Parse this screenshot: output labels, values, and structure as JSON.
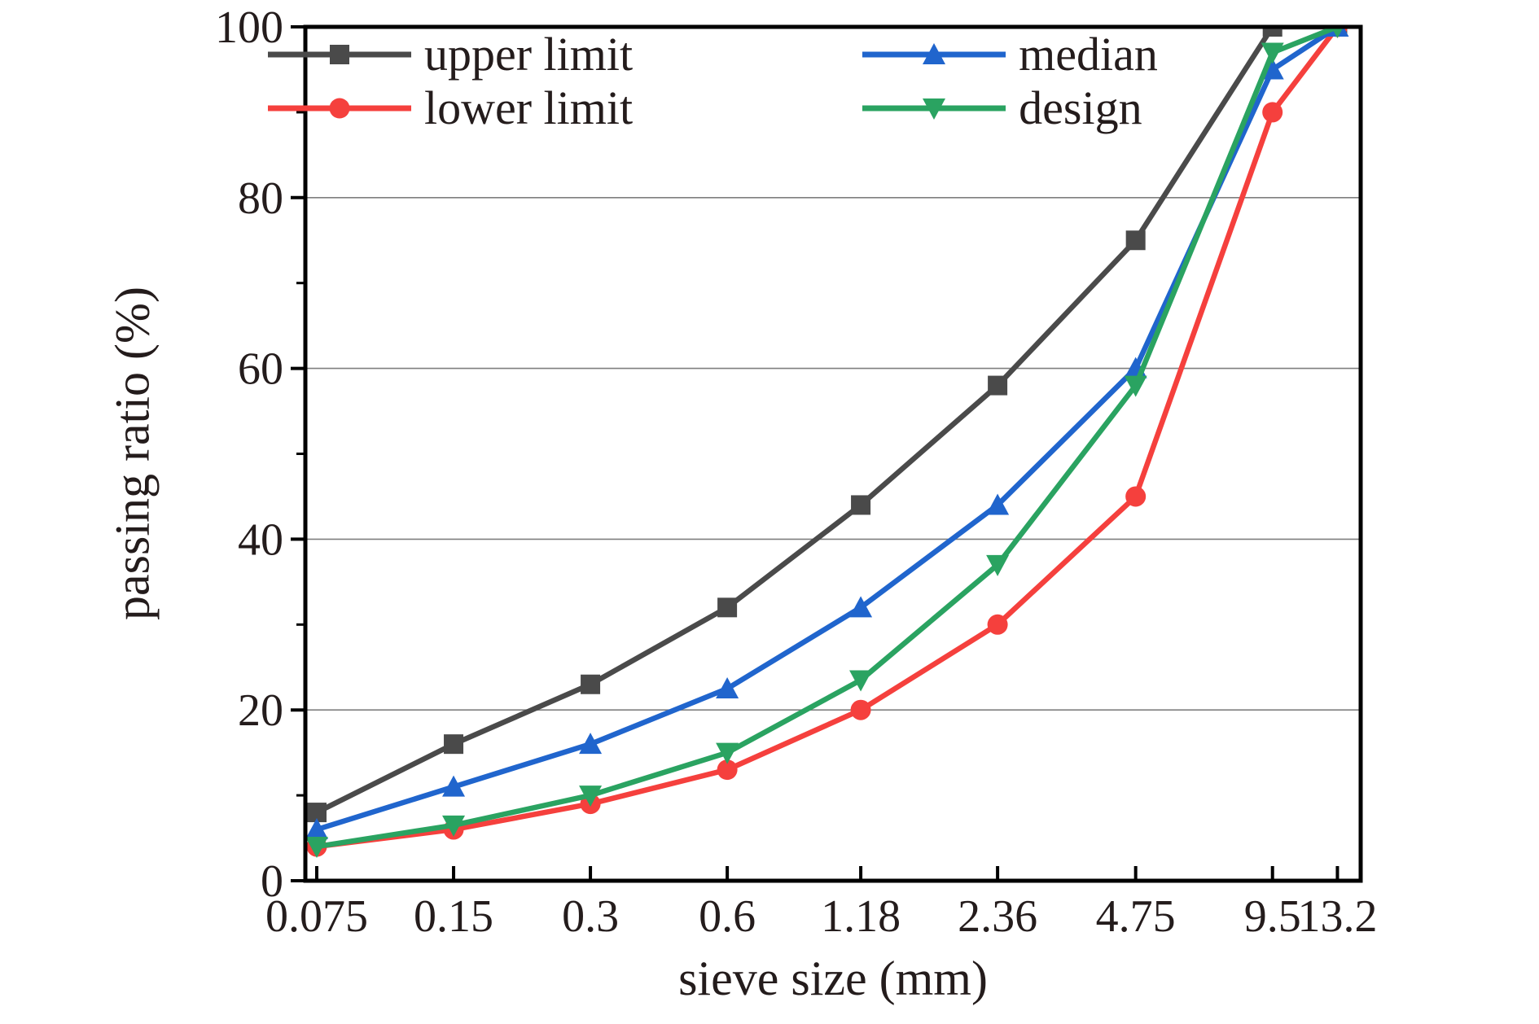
{
  "figure": {
    "background": "#ffffff"
  },
  "chart_data": {
    "type": "line",
    "title": "",
    "xlabel": "sieve size (mm)",
    "ylabel": "passing ratio (%)",
    "x_scale": "log",
    "categories": [
      0.075,
      0.15,
      0.3,
      0.6,
      1.18,
      2.36,
      4.75,
      9.5,
      13.2
    ],
    "x_tick_labels": [
      "0.075",
      "0.15",
      "0.3",
      "0.6",
      "1.18",
      "2.36",
      "4.75",
      "9.5",
      "13.2"
    ],
    "ylim": [
      0,
      100
    ],
    "y_ticks": [
      0,
      20,
      40,
      60,
      80,
      100
    ],
    "y_minor_ticks": [
      10,
      30,
      50,
      70,
      90
    ],
    "grid": "horizontal-major",
    "legend_position": "top-left-inside",
    "series": [
      {
        "name": "upper limit",
        "color": "#4a4a4a",
        "marker": "square",
        "values": [
          8,
          16,
          23,
          32,
          44,
          58,
          75,
          100,
          100
        ]
      },
      {
        "name": "lower limit",
        "color": "#f5403d",
        "marker": "circle",
        "values": [
          4,
          6,
          9,
          13,
          20,
          30,
          45,
          90,
          100
        ]
      },
      {
        "name": "median",
        "color": "#2065cd",
        "marker": "triangle-up",
        "values": [
          6,
          11,
          16,
          22.5,
          32,
          44,
          60,
          95,
          100
        ]
      },
      {
        "name": "design",
        "color": "#2aa361",
        "marker": "triangle-down",
        "values": [
          4,
          6.5,
          10,
          15,
          23.5,
          37,
          58,
          97,
          100
        ]
      }
    ],
    "style": {
      "axis_color": "#000000",
      "grid_color": "#7f7f7f",
      "text_color": "#241c1c"
    }
  }
}
